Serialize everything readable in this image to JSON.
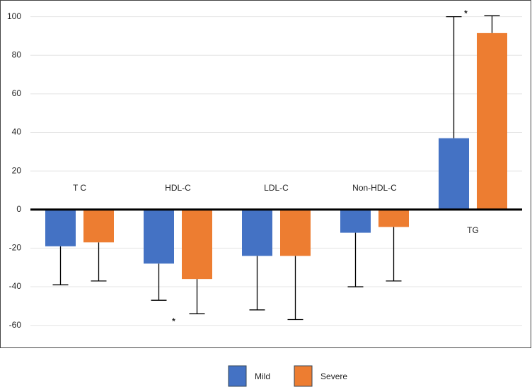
{
  "chart_data": {
    "type": "bar",
    "categories": [
      "T C",
      "HDL-C",
      "LDL-C",
      "Non-HDL-C",
      "TG"
    ],
    "series": [
      {
        "name": "Mild",
        "color": "#4472c4",
        "values": [
          -19,
          -28,
          -24,
          -12,
          37
        ],
        "errors": [
          20,
          19,
          28,
          28,
          63
        ]
      },
      {
        "name": "Severe",
        "color": "#ed7d31",
        "values": [
          -17,
          -36,
          -24,
          -9,
          91.5
        ],
        "errors": [
          20,
          18,
          33,
          28,
          9
        ]
      }
    ],
    "annotations": [
      "*",
      "*"
    ],
    "ylim": [
      -70,
      105
    ],
    "yticks": [
      -60,
      -40,
      -20,
      0,
      20,
      40,
      60,
      80,
      100
    ],
    "grid": true,
    "legend": "bottom"
  }
}
